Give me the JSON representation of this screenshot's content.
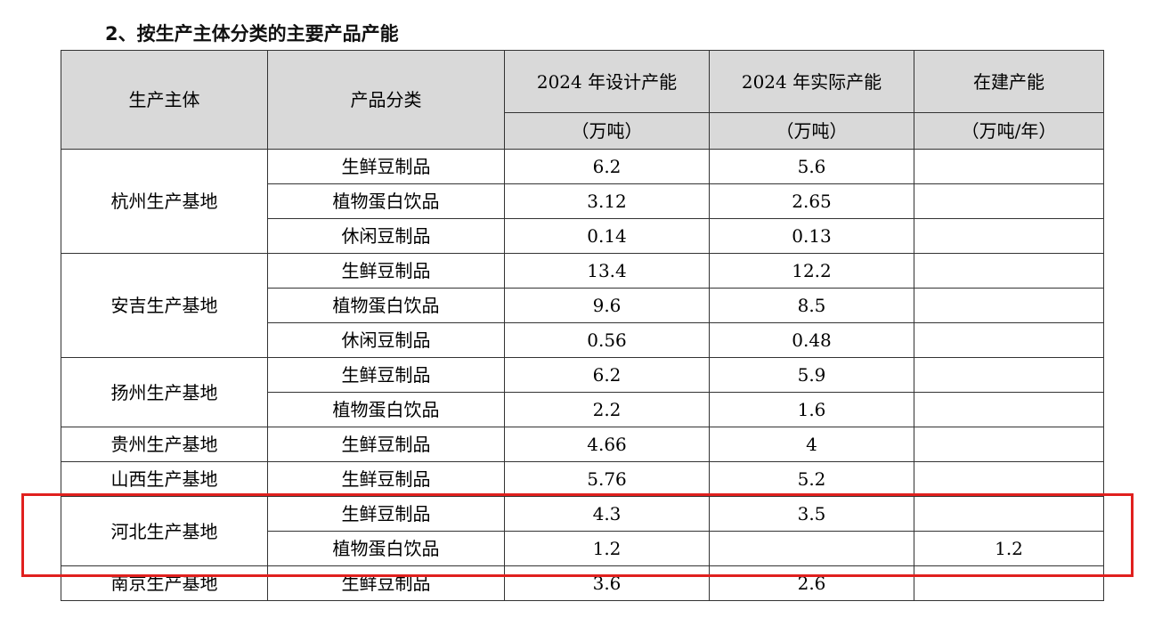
{
  "title": "2、按生产主体分类的主要产品产能",
  "table": {
    "headers": {
      "entity": "生产主体",
      "category": "产品分类",
      "design": "2024 年设计产能",
      "actual": "2024 年实际产能",
      "building": "在建产能",
      "design_unit": "（万吨）",
      "actual_unit": "（万吨）",
      "building_unit": "（万吨/年）"
    },
    "groups": [
      {
        "base": "杭州生产基地",
        "rows": [
          {
            "category": "生鲜豆制品",
            "design": "6.2",
            "actual": "5.6",
            "building": ""
          },
          {
            "category": "植物蛋白饮品",
            "design": "3.12",
            "actual": "2.65",
            "building": ""
          },
          {
            "category": "休闲豆制品",
            "design": "0.14",
            "actual": "0.13",
            "building": ""
          }
        ]
      },
      {
        "base": "安吉生产基地",
        "rows": [
          {
            "category": "生鲜豆制品",
            "design": "13.4",
            "actual": "12.2",
            "building": ""
          },
          {
            "category": "植物蛋白饮品",
            "design": "9.6",
            "actual": "8.5",
            "building": ""
          },
          {
            "category": "休闲豆制品",
            "design": "0.56",
            "actual": "0.48",
            "building": ""
          }
        ]
      },
      {
        "base": "扬州生产基地",
        "rows": [
          {
            "category": "生鲜豆制品",
            "design": "6.2",
            "actual": "5.9",
            "building": ""
          },
          {
            "category": "植物蛋白饮品",
            "design": "2.2",
            "actual": "1.6",
            "building": ""
          }
        ]
      },
      {
        "base": "贵州生产基地",
        "rows": [
          {
            "category": "生鲜豆制品",
            "design": "4.66",
            "actual": "4",
            "building": ""
          }
        ]
      },
      {
        "base": "山西生产基地",
        "rows": [
          {
            "category": "生鲜豆制品",
            "design": "5.76",
            "actual": "5.2",
            "building": ""
          }
        ]
      },
      {
        "base": "河北生产基地",
        "rows": [
          {
            "category": "生鲜豆制品",
            "design": "4.3",
            "actual": "3.5",
            "building": ""
          },
          {
            "category": "植物蛋白饮品",
            "design": "1.2",
            "actual": "",
            "building": "1.2"
          }
        ]
      },
      {
        "base": "南京生产基地",
        "rows": [
          {
            "category": "生鲜豆制品",
            "design": "3.6",
            "actual": "2.6",
            "building": ""
          }
        ]
      }
    ]
  },
  "highlight": {
    "color": "#e0201e"
  }
}
